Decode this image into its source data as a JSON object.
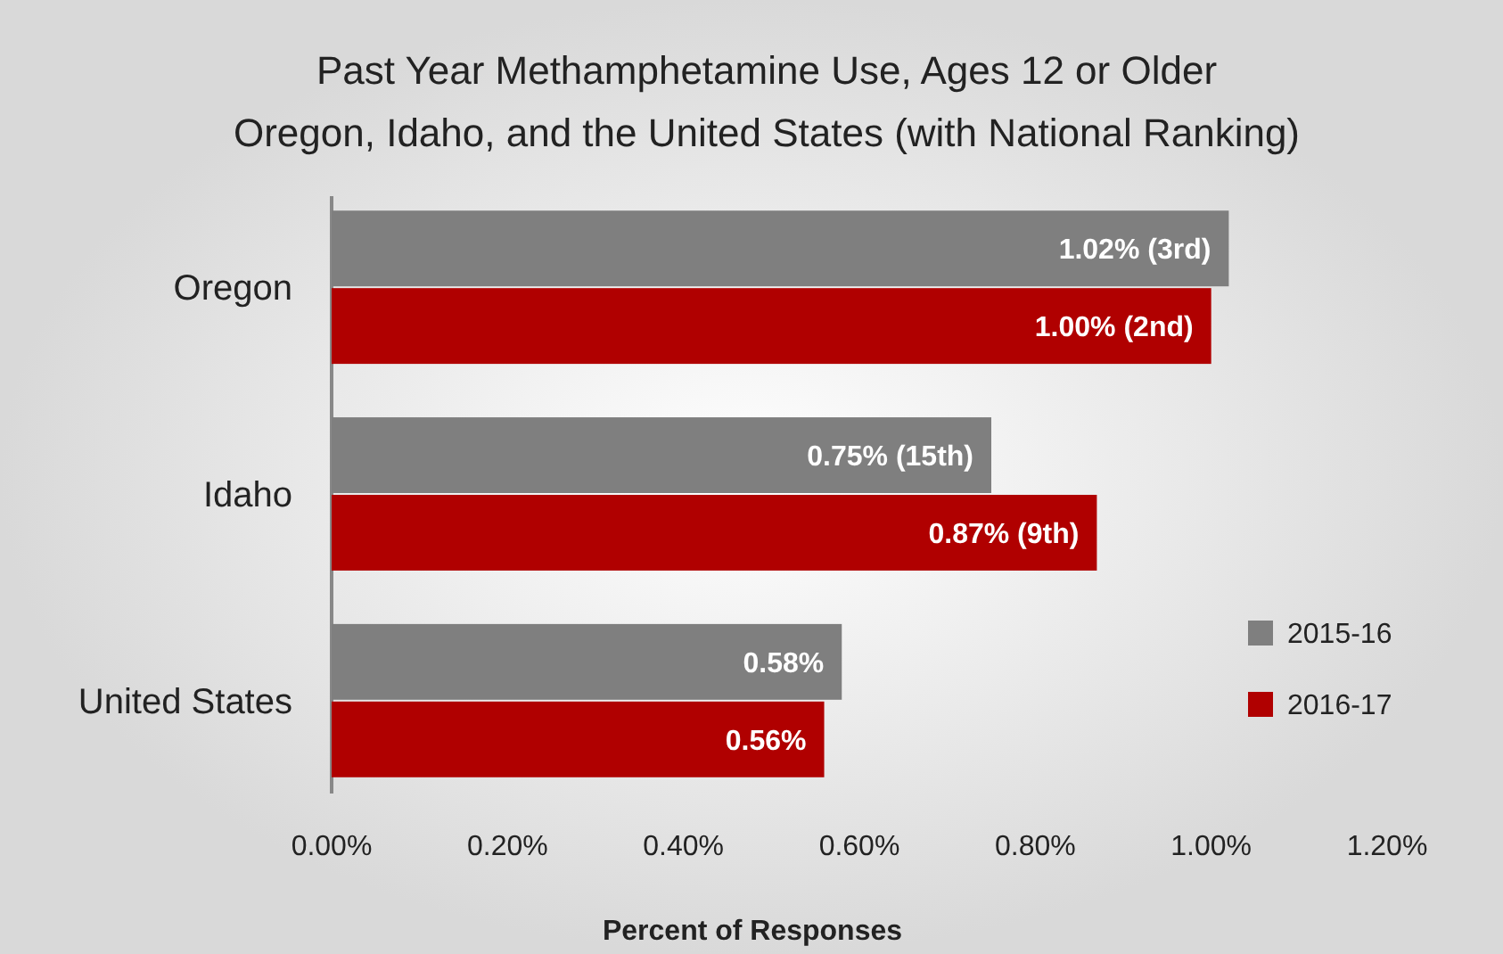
{
  "chart_data": {
    "type": "bar",
    "orientation": "horizontal",
    "title": "Past Year Methamphetamine Use, Ages 12 or Older",
    "subtitle": "Oregon, Idaho, and the United States (with National Ranking)",
    "xlabel": "Percent of Responses",
    "categories": [
      "Oregon",
      "Idaho",
      "United States"
    ],
    "series": [
      {
        "name": "2015-16",
        "color": "#7f7f7f",
        "values": [
          1.02,
          0.75,
          0.58
        ],
        "value_labels": [
          "1.02% (3rd)",
          "0.75% (15th)",
          "0.58%"
        ]
      },
      {
        "name": "2016-17",
        "color": "#b00000",
        "values": [
          1.0,
          0.87,
          0.56
        ],
        "value_labels": [
          "1.00% (2nd)",
          "0.87% (9th)",
          "0.56%"
        ]
      }
    ],
    "xlim": [
      0,
      1.2
    ],
    "xticks": [
      {
        "value": 0,
        "label": "0.00%"
      },
      {
        "value": 0.2,
        "label": "0.20%"
      },
      {
        "value": 0.4,
        "label": "0.40%"
      },
      {
        "value": 0.6,
        "label": "0.60%"
      },
      {
        "value": 0.8,
        "label": "0.80%"
      },
      {
        "value": 1.0,
        "label": "1.00%"
      },
      {
        "value": 1.2,
        "label": "1.20%"
      }
    ],
    "grid": false,
    "legend": "right"
  }
}
